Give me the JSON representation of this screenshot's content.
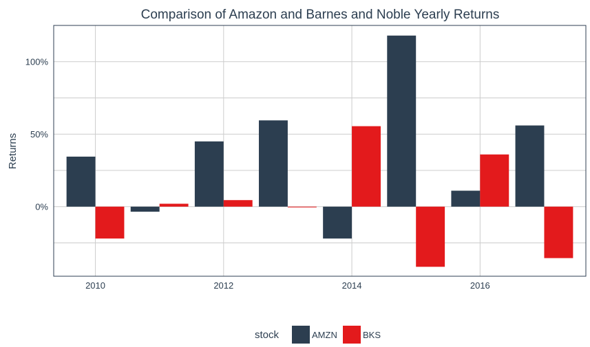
{
  "chart_data": {
    "type": "bar",
    "title": "Comparison of Amazon and Barnes and Noble Yearly Returns",
    "xlabel": "",
    "ylabel": "Returns",
    "x": [
      2010,
      2011,
      2012,
      2013,
      2014,
      2015,
      2016,
      2017
    ],
    "x_ticks": [
      2010,
      2012,
      2014,
      2016
    ],
    "x_tick_labels": [
      "2010",
      "2012",
      "2014",
      "2016"
    ],
    "y_ticks": [
      0,
      0.5,
      1.0
    ],
    "y_tick_labels": [
      "0%",
      "50%",
      "100%"
    ],
    "y_minor_gridlines": [
      -0.25,
      0.25,
      0.75
    ],
    "ylim": [
      -0.48,
      1.25
    ],
    "xlim": [
      2009.35,
      2017.65
    ],
    "grid": true,
    "legend": {
      "title": "stock",
      "position": "bottom"
    },
    "series": [
      {
        "name": "AMZN",
        "color": "#2c3e50",
        "values": [
          0.345,
          -0.035,
          0.45,
          0.595,
          -0.22,
          1.18,
          0.11,
          0.56
        ]
      },
      {
        "name": "BKS",
        "color": "#e31a1c",
        "values": [
          -0.22,
          0.02,
          0.045,
          -0.005,
          0.555,
          -0.415,
          0.36,
          -0.355
        ]
      }
    ]
  }
}
